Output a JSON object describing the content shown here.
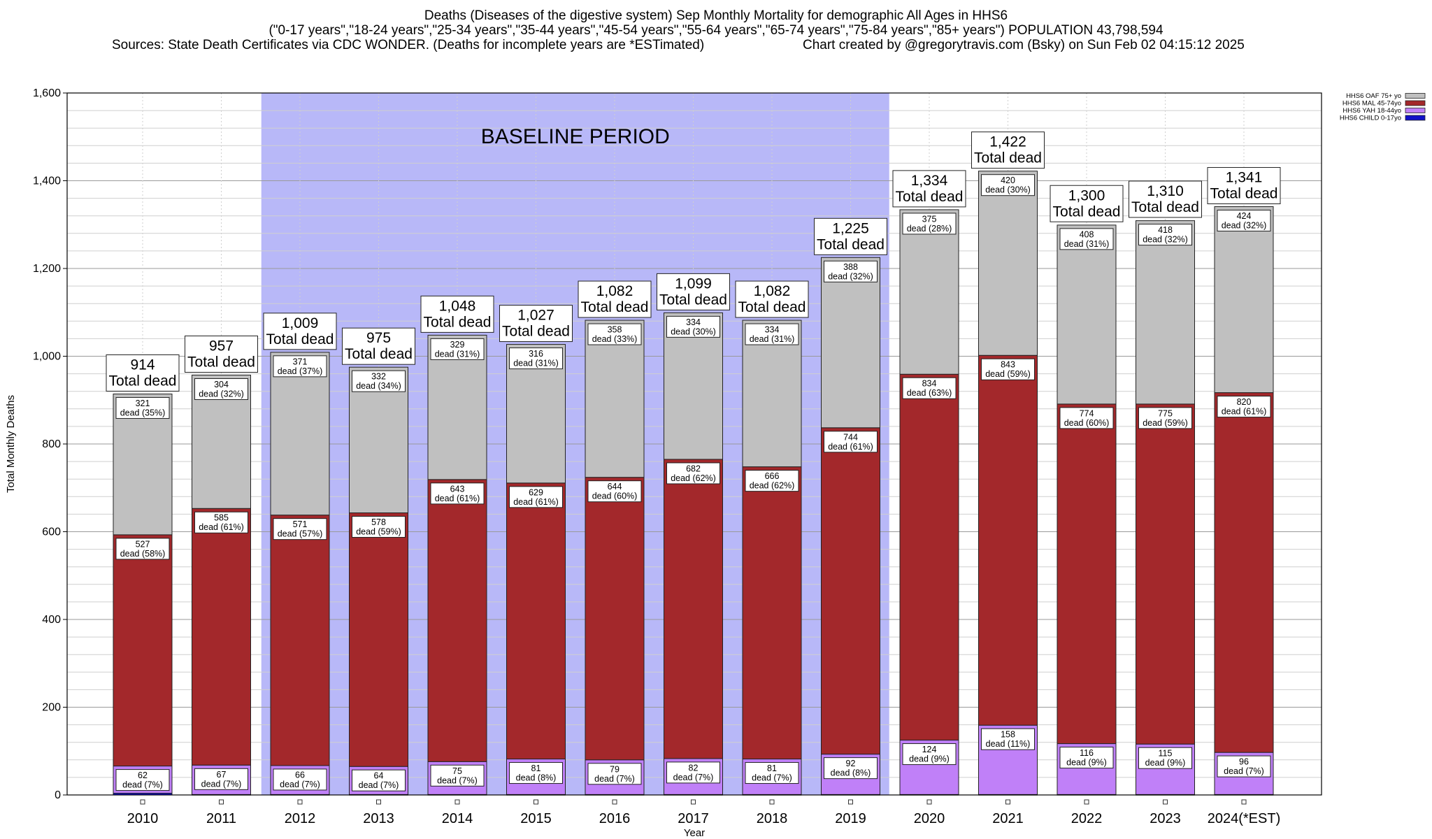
{
  "header": {
    "title_line1": "Deaths (Diseases of the digestive system) Sep Monthly Mortality for demographic All Ages in HHS6",
    "title_line2": "(\"0-17 years\",\"18-24 years\",\"25-34 years\",\"35-44 years\",\"45-54 years\",\"55-64 years\",\"65-74 years\",\"75-84 years\",\"85+ years\") POPULATION 43,798,594",
    "sources": "Sources: State Death Certificates via CDC WONDER. (Deaths for incomplete years are *ESTimated)",
    "credit": "Chart created by @gregorytravis.com (Bsky) on Sun Feb 02 04:15:12 2025"
  },
  "chart_data": {
    "type": "bar",
    "stacked": true,
    "xlabel": "Year",
    "ylabel": "Total Monthly Deaths",
    "ylim": [
      0,
      1600
    ],
    "yticks": [
      0,
      200,
      400,
      600,
      800,
      1000,
      1200,
      1400,
      1600
    ],
    "ytick_labels": [
      "0",
      "200",
      "400",
      "600",
      "800",
      "1,000",
      "1,200",
      "1,400",
      "1,600"
    ],
    "grid": true,
    "legend_position": "top-right",
    "categories": [
      "2010",
      "2011",
      "2012",
      "2013",
      "2014",
      "2015",
      "2016",
      "2017",
      "2018",
      "2019",
      "2020",
      "2021",
      "2022",
      "2023",
      "2024(*EST)"
    ],
    "baseline": {
      "label": "BASELINE PERIOD",
      "from": "2012",
      "to": "2019",
      "color": "#b8b8f8"
    },
    "series": [
      {
        "name": "HHS6 CHILD 0-17yo",
        "color": "#1010c8",
        "values": [
          4,
          1,
          1,
          1,
          1,
          1,
          1,
          1,
          1,
          1,
          1,
          1,
          1,
          1,
          1
        ],
        "labels": []
      },
      {
        "name": "HHS6 YAH 18-44yo",
        "color": "#c080f8",
        "values": [
          62,
          67,
          66,
          64,
          75,
          81,
          79,
          82,
          81,
          92,
          124,
          158,
          116,
          115,
          96
        ],
        "labels": [
          "dead (7%)",
          "dead (7%)",
          "dead (7%)",
          "dead (7%)",
          "dead (7%)",
          "dead (8%)",
          "dead (7%)",
          "dead (7%)",
          "dead (7%)",
          "dead (8%)",
          "dead (9%)",
          "dead (11%)",
          "dead (9%)",
          "dead (9%)",
          "dead (7%)"
        ]
      },
      {
        "name": "HHS6 MAL 45-74yo",
        "color": "#a3282b",
        "values": [
          527,
          585,
          571,
          578,
          643,
          629,
          644,
          682,
          666,
          744,
          834,
          843,
          774,
          775,
          820
        ],
        "labels": [
          "dead (58%)",
          "dead (61%)",
          "dead (57%)",
          "dead (59%)",
          "dead (61%)",
          "dead (61%)",
          "dead (60%)",
          "dead (62%)",
          "dead (62%)",
          "dead (61%)",
          "dead (63%)",
          "dead (59%)",
          "dead (60%)",
          "dead (59%)",
          "dead (61%)"
        ]
      },
      {
        "name": "HHS6 OAF 75+ yo",
        "color": "#c0c0c0",
        "values": [
          321,
          304,
          371,
          332,
          329,
          316,
          358,
          334,
          334,
          388,
          375,
          420,
          408,
          418,
          424
        ],
        "labels": [
          "dead (35%)",
          "dead (32%)",
          "dead (37%)",
          "dead (34%)",
          "dead (31%)",
          "dead (31%)",
          "dead (33%)",
          "dead (30%)",
          "dead (31%)",
          "dead (32%)",
          "dead (28%)",
          "dead (30%)",
          "dead (31%)",
          "dead (32%)",
          "dead (32%)"
        ]
      }
    ],
    "totals": [
      914,
      957,
      1009,
      975,
      1048,
      1027,
      1082,
      1099,
      1082,
      1225,
      1334,
      1422,
      1300,
      1310,
      1341
    ],
    "total_labels": [
      "914",
      "957",
      "1,009",
      "975",
      "1,048",
      "1,027",
      "1,082",
      "1,099",
      "1,082",
      "1,225",
      "1,334",
      "1,422",
      "1,300",
      "1,310",
      "1,341"
    ],
    "total_suffix": "Total dead",
    "legend_order": [
      "HHS6 OAF 75+ yo",
      "HHS6 MAL 45-74yo",
      "HHS6 YAH 18-44yo",
      "HHS6 CHILD 0-17yo"
    ]
  }
}
